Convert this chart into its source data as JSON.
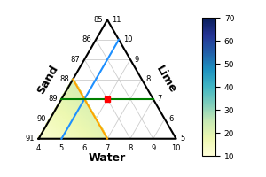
{
  "water_label": "Water",
  "sand_label": "Sand",
  "lime_label": "Lime",
  "water_ticks": [
    4,
    5,
    6,
    7,
    8,
    9,
    10
  ],
  "lime_ticks": [
    5,
    6,
    7,
    8,
    9,
    10,
    11
  ],
  "sand_ticks": [
    85,
    86,
    87,
    88,
    89,
    90,
    91
  ],
  "colorbar_min": 10,
  "colorbar_max": 70,
  "colorbar_ticks": [
    10,
    20,
    30,
    40,
    50,
    60,
    70
  ],
  "colormap": "YlGnBu",
  "WATER_MIN": 4,
  "WATER_MAX": 10,
  "LIME_MIN": 5,
  "LIME_MAX": 11,
  "SAND_MIN": 85,
  "SAND_MAX": 91,
  "TOTAL": 100,
  "blue_water": 5,
  "orange_sand": 88,
  "green_lime": 7,
  "red_point": [
    6,
    87,
    7
  ],
  "region_sand_boundary": 88,
  "region_water_max": 7
}
